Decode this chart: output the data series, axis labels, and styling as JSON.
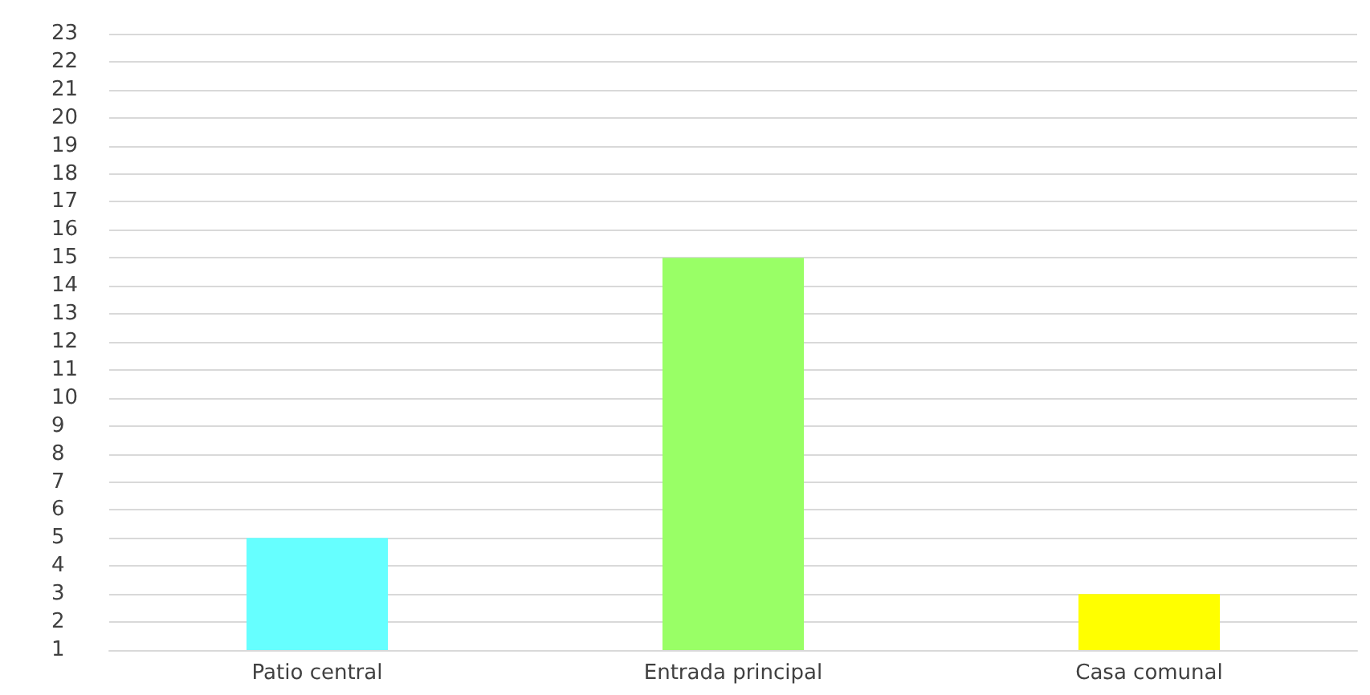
{
  "chart_data": {
    "type": "bar",
    "categories": [
      "Patio central",
      "Entrada principal",
      "Casa comunal"
    ],
    "values": [
      5,
      15,
      3
    ],
    "colors": [
      "#66ffff",
      "#99ff66",
      "#ffff00"
    ],
    "ylim": [
      1,
      23
    ],
    "yticks": [
      1,
      2,
      3,
      4,
      5,
      6,
      7,
      8,
      9,
      10,
      11,
      12,
      13,
      14,
      15,
      16,
      17,
      18,
      19,
      20,
      21,
      22,
      23
    ],
    "grid": "y"
  }
}
